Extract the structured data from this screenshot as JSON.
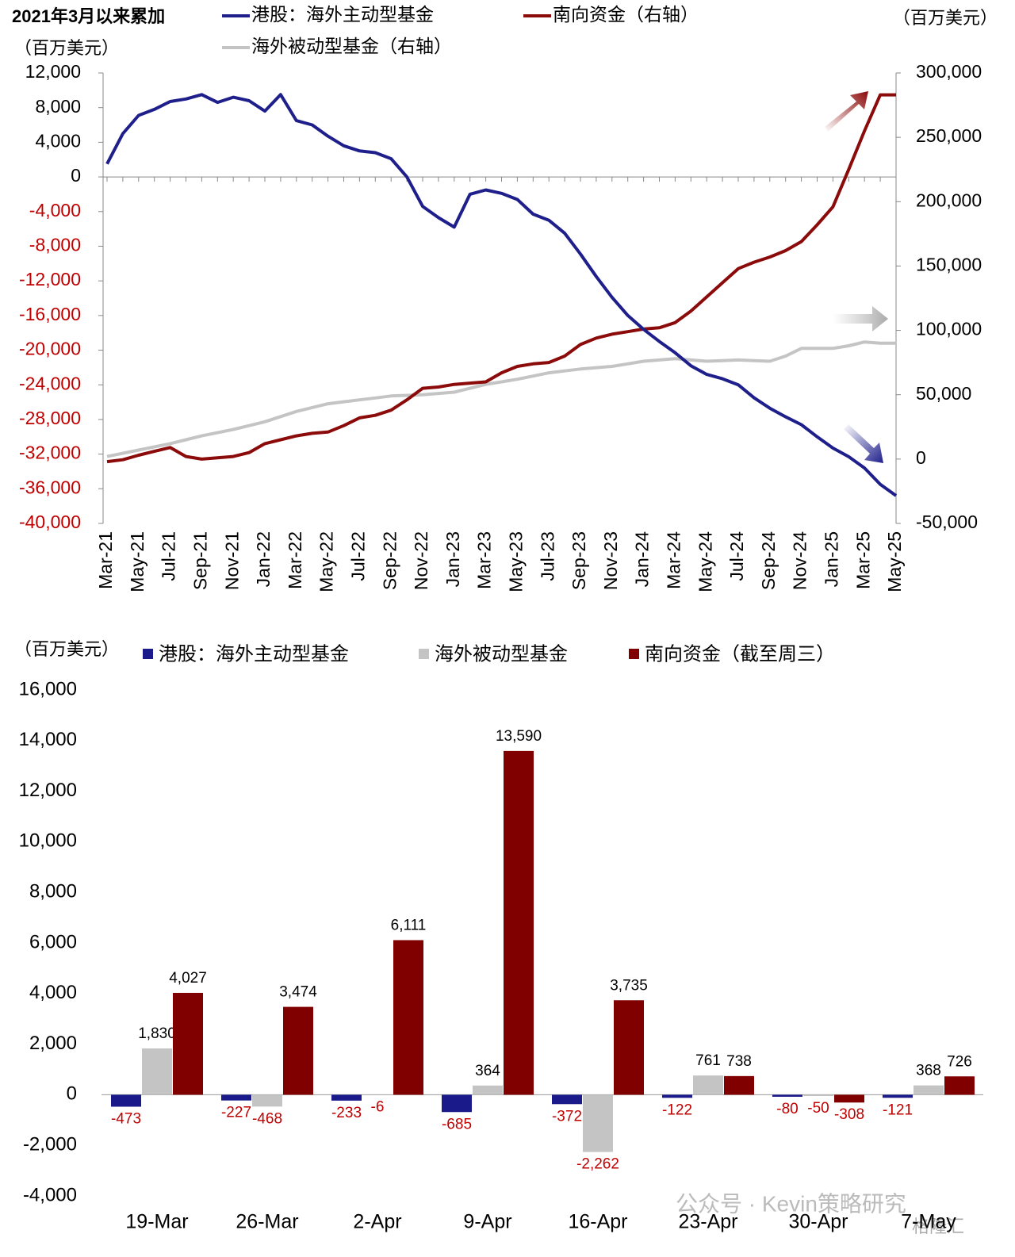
{
  "chart_data": [
    {
      "type": "line",
      "title": "2021年3月以来累加",
      "y_unit": "（百万美元）",
      "y2_unit": "（百万美元）",
      "legend": "top",
      "categories": [
        "Mar-21",
        null,
        "May-21",
        null,
        "Jul-21",
        null,
        "Sep-21",
        null,
        "Nov-21",
        null,
        "Jan-22",
        null,
        "Mar-22",
        null,
        "May-22",
        null,
        "Jul-22",
        null,
        "Sep-22",
        null,
        "Nov-22",
        null,
        "Jan-23",
        null,
        "Mar-23",
        null,
        "May-23",
        null,
        "Jul-23",
        null,
        "Sep-23",
        null,
        "Nov-23",
        null,
        "Jan-24",
        null,
        "Mar-24",
        null,
        "May-24",
        null,
        "Jul-24",
        null,
        "Sep-24",
        null,
        "Nov-24",
        null,
        "Jan-25",
        null,
        "Mar-25",
        null,
        "May-25"
      ],
      "series": [
        {
          "name": "港股：海外主动型基金",
          "color": "#1f1f8c",
          "axis": "y",
          "values": [
            1500,
            5000,
            7100,
            7800,
            8700,
            9000,
            9500,
            8600,
            9200,
            8800,
            7600,
            9500,
            6500,
            6000,
            4700,
            3600,
            3000,
            2800,
            2100,
            0,
            -3400,
            -4700,
            -5800,
            -2000,
            -1500,
            -1900,
            -2600,
            -4300,
            -5000,
            -6500,
            -8900,
            -11500,
            -13900,
            -16000,
            -17600,
            -19000,
            -20300,
            -21800,
            -22800,
            -23300,
            -24000,
            -25500,
            -26700,
            -27700,
            -28600,
            -30000,
            -31300,
            -32300,
            -33600,
            -35500,
            -36800
          ]
        },
        {
          "name": "南向资金（右轴）",
          "color": "#8b0a0a",
          "axis": "y2",
          "values": [
            -2000,
            -500,
            3000,
            6000,
            9000,
            2000,
            0,
            1000,
            2000,
            5000,
            12000,
            15000,
            18000,
            20000,
            21000,
            26000,
            32000,
            34000,
            38000,
            46000,
            55000,
            56000,
            58000,
            59000,
            60000,
            67000,
            72000,
            74000,
            75000,
            80000,
            89000,
            94000,
            97000,
            99000,
            101000,
            102000,
            106000,
            115000,
            126000,
            137000,
            148000,
            153000,
            157000,
            162000,
            169000,
            182000,
            196000,
            225000,
            255000,
            283000,
            283000
          ]
        },
        {
          "name": "海外被动型基金（右轴）",
          "color": "#c4c4c4",
          "axis": "y2",
          "values": [
            2000,
            4500,
            7000,
            9500,
            12000,
            15000,
            18000,
            20500,
            23000,
            26000,
            29000,
            33000,
            37000,
            40000,
            43000,
            44500,
            46000,
            47500,
            49000,
            49500,
            50000,
            51000,
            52000,
            55000,
            58000,
            60000,
            62000,
            64500,
            67000,
            68500,
            70000,
            71000,
            72000,
            74000,
            76000,
            77000,
            78000,
            77000,
            76000,
            76500,
            77000,
            76500,
            76000,
            80000,
            86000,
            86000,
            86000,
            88000,
            91000,
            90000,
            90000
          ]
        }
      ],
      "ylim": [
        -40000,
        12000
      ],
      "yticks": [
        {
          "value": -40000,
          "label": "-40,000"
        },
        {
          "value": -36000,
          "label": "-36,000"
        },
        {
          "value": -32000,
          "label": "-32,000"
        },
        {
          "value": -28000,
          "label": "-28,000"
        },
        {
          "value": -24000,
          "label": "-24,000"
        },
        {
          "value": -20000,
          "label": "-20,000"
        },
        {
          "value": -16000,
          "label": "-16,000"
        },
        {
          "value": -12000,
          "label": "-12,000"
        },
        {
          "value": -8000,
          "label": "-8,000"
        },
        {
          "value": -4000,
          "label": "-4,000"
        },
        0,
        {
          "value": 4000,
          "label": "4,000"
        },
        {
          "value": 8000,
          "label": "8,000"
        },
        {
          "value": 12000,
          "label": "12,000"
        }
      ],
      "y2lim": [
        -50000,
        300000
      ],
      "y2ticks": [
        {
          "value": -50000,
          "label": "-50,000"
        },
        0,
        {
          "value": 50000,
          "label": "50,000"
        },
        {
          "value": 100000,
          "label": "100,000"
        },
        {
          "value": 150000,
          "label": "150,000"
        },
        {
          "value": 200000,
          "label": "200,000"
        },
        {
          "value": 250000,
          "label": "250,000"
        },
        {
          "value": 300000,
          "label": "300,000"
        }
      ],
      "grid": false
    },
    {
      "type": "bar",
      "y_unit": "（百万美元）",
      "legend": "top",
      "categories": [
        "19-Mar",
        "26-Mar",
        "2-Apr",
        "9-Apr",
        "16-Apr",
        "23-Apr",
        "30-Apr",
        "7-May"
      ],
      "series": [
        {
          "name": "港股：海外主动型基金",
          "color": "#1a1a8a",
          "values": [
            -473,
            -227,
            -233,
            -685,
            -372,
            -122,
            -80,
            -121
          ],
          "value_labels": [
            "-473",
            "-227",
            "-233",
            "-685",
            "-372",
            "-122",
            "-80",
            "-121"
          ]
        },
        {
          "name": "海外被动型基金",
          "color": "#c4c4c4",
          "values": [
            1830,
            -468,
            -6,
            364,
            -2262,
            761,
            -50,
            368
          ],
          "value_labels": [
            "1,830",
            "-468",
            "-6",
            "364",
            "-2,262",
            "761",
            "-50",
            "368"
          ]
        },
        {
          "name": "南向资金（截至周三）",
          "color": "#800000",
          "values": [
            4027,
            3474,
            6111,
            13590,
            3735,
            738,
            -308,
            726
          ],
          "value_labels": [
            "4,027",
            "3,474",
            "6,111",
            "13,590",
            "3,735",
            "738",
            "-308",
            "726"
          ]
        }
      ],
      "ylim": [
        -4000,
        16000
      ],
      "yticks": [
        {
          "value": -4000,
          "label": "-4,000"
        },
        {
          "value": -2000,
          "label": "-2,000"
        },
        0,
        {
          "value": 2000,
          "label": "2,000"
        },
        {
          "value": 4000,
          "label": "4,000"
        },
        {
          "value": 6000,
          "label": "6,000"
        },
        {
          "value": 8000,
          "label": "8,000"
        },
        {
          "value": 10000,
          "label": "10,000"
        },
        {
          "value": 12000,
          "label": "12,000"
        },
        {
          "value": 14000,
          "label": "14,000"
        },
        {
          "value": 16000,
          "label": "16,000"
        }
      ],
      "grid": false
    }
  ],
  "watermarks": [
    "公众号 · Kevin策略研究",
    "格隆汇"
  ]
}
